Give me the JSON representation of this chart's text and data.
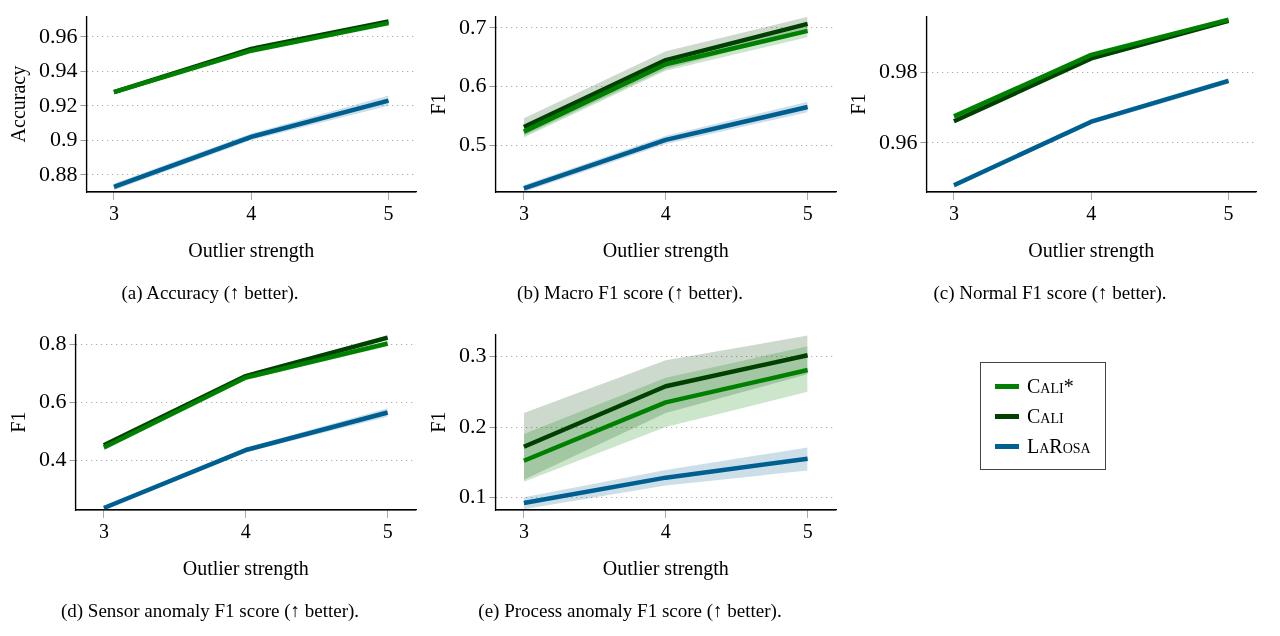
{
  "chart_data": [
    {
      "type": "line",
      "title": "(a) Accuracy (↑ better).",
      "xlabel": "Outlier strength",
      "ylabel": "Accuracy",
      "x": [
        3,
        4,
        5
      ],
      "xlim": [
        2.8,
        5.2
      ],
      "xticks": [
        3,
        4,
        5
      ],
      "ylim": [
        0.87,
        0.972
      ],
      "yticks": [
        0.88,
        0.9,
        0.92,
        0.94,
        0.96
      ],
      "grid": "y",
      "line_style": "solid",
      "series": [
        {
          "color": "#008000",
          "values": [
            0.928,
            0.952,
            0.968
          ]
        },
        {
          "color": "#004000",
          "values": [
            0.928,
            0.953,
            0.969
          ]
        },
        {
          "color": "#005f91",
          "values": [
            0.873,
            0.902,
            0.923
          ],
          "lower": [
            0.871,
            0.9,
            0.92
          ],
          "upper": [
            0.875,
            0.904,
            0.926
          ]
        }
      ]
    },
    {
      "type": "line",
      "title": "(b) Macro F1 score (↑ better).",
      "xlabel": "Outlier strength",
      "ylabel": "F1",
      "x": [
        3,
        4,
        5
      ],
      "xlim": [
        2.8,
        5.2
      ],
      "xticks": [
        3,
        4,
        5
      ],
      "ylim": [
        0.42,
        0.72
      ],
      "yticks": [
        0.5,
        0.6,
        0.7
      ],
      "grid": "y",
      "line_style": "solid",
      "series": [
        {
          "color": "#008000",
          "values": [
            0.523,
            0.638,
            0.695
          ],
          "lower": [
            0.513,
            0.627,
            0.684
          ],
          "upper": [
            0.533,
            0.648,
            0.705
          ]
        },
        {
          "color": "#004000",
          "values": [
            0.531,
            0.645,
            0.707
          ],
          "lower": [
            0.516,
            0.63,
            0.695
          ],
          "upper": [
            0.546,
            0.66,
            0.719
          ]
        },
        {
          "color": "#005f91",
          "values": [
            0.426,
            0.509,
            0.565
          ],
          "lower": [
            0.42,
            0.502,
            0.556
          ],
          "upper": [
            0.432,
            0.516,
            0.574
          ]
        }
      ]
    },
    {
      "type": "line",
      "title": "(c) Normal F1 score (↑ better).",
      "xlabel": "Outlier strength",
      "ylabel": "F1",
      "x": [
        3,
        4,
        5
      ],
      "xlim": [
        2.8,
        5.2
      ],
      "xticks": [
        3,
        4,
        5
      ],
      "ylim": [
        0.946,
        0.996
      ],
      "yticks": [
        0.96,
        0.98
      ],
      "grid": "y",
      "line_style": "solid",
      "series": [
        {
          "color": "#008000",
          "values": [
            0.9675,
            0.985,
            0.995
          ],
          "lower": [
            0.967,
            0.9845,
            0.9945
          ],
          "upper": [
            0.968,
            0.9855,
            0.9955
          ]
        },
        {
          "color": "#004000",
          "values": [
            0.9661,
            0.984,
            0.9947
          ],
          "lower": [
            0.9656,
            0.9835,
            0.9942
          ],
          "upper": [
            0.9666,
            0.9845,
            0.9952
          ]
        },
        {
          "color": "#005f91",
          "values": [
            0.9479,
            0.966,
            0.9776
          ],
          "lower": [
            0.9472,
            0.9653,
            0.9768
          ],
          "upper": [
            0.9486,
            0.9667,
            0.9784
          ]
        }
      ]
    },
    {
      "type": "line",
      "title": "(d) Sensor anomaly F1 score (↑ better).",
      "xlabel": "Outlier strength",
      "ylabel": "F1",
      "x": [
        3,
        4,
        5
      ],
      "xlim": [
        2.8,
        5.2
      ],
      "xticks": [
        3,
        4,
        5
      ],
      "ylim": [
        0.23,
        0.834
      ],
      "yticks": [
        0.4,
        0.6,
        0.8
      ],
      "grid": "y",
      "line_style": "solid",
      "series": [
        {
          "color": "#008000",
          "values": [
            0.445,
            0.685,
            0.802
          ],
          "lower": [
            0.435,
            0.677,
            0.793
          ],
          "upper": [
            0.455,
            0.693,
            0.811
          ]
        },
        {
          "color": "#004000",
          "values": [
            0.452,
            0.69,
            0.822
          ],
          "lower": [
            0.442,
            0.682,
            0.814
          ],
          "upper": [
            0.462,
            0.698,
            0.83
          ]
        },
        {
          "color": "#005f91",
          "values": [
            0.237,
            0.436,
            0.565
          ],
          "lower": [
            0.232,
            0.428,
            0.55
          ],
          "upper": [
            0.242,
            0.444,
            0.58
          ]
        }
      ]
    },
    {
      "type": "line",
      "title": "(e) Process anomaly F1 score (↑ better).",
      "xlabel": "Outlier strength",
      "ylabel": "F1",
      "x": [
        3,
        4,
        5
      ],
      "xlim": [
        2.8,
        5.2
      ],
      "xticks": [
        3,
        4,
        5
      ],
      "ylim": [
        0.082,
        0.332
      ],
      "yticks": [
        0.1,
        0.2,
        0.3
      ],
      "grid": "y",
      "line_style": "solid",
      "legend": "right",
      "series": [
        {
          "name": "Cali*",
          "color": "#008000",
          "values": [
            0.152,
            0.235,
            0.281
          ],
          "lower": [
            0.122,
            0.2,
            0.25
          ],
          "upper": [
            0.19,
            0.27,
            0.315
          ]
        },
        {
          "name": "Cali",
          "color": "#004000",
          "values": [
            0.172,
            0.258,
            0.302
          ],
          "lower": [
            0.125,
            0.22,
            0.275
          ],
          "upper": [
            0.22,
            0.295,
            0.33
          ]
        },
        {
          "name": "LaRosa",
          "color": "#005f91",
          "values": [
            0.092,
            0.128,
            0.155
          ],
          "lower": [
            0.083,
            0.117,
            0.138
          ],
          "upper": [
            0.1,
            0.139,
            0.171
          ]
        }
      ]
    }
  ]
}
